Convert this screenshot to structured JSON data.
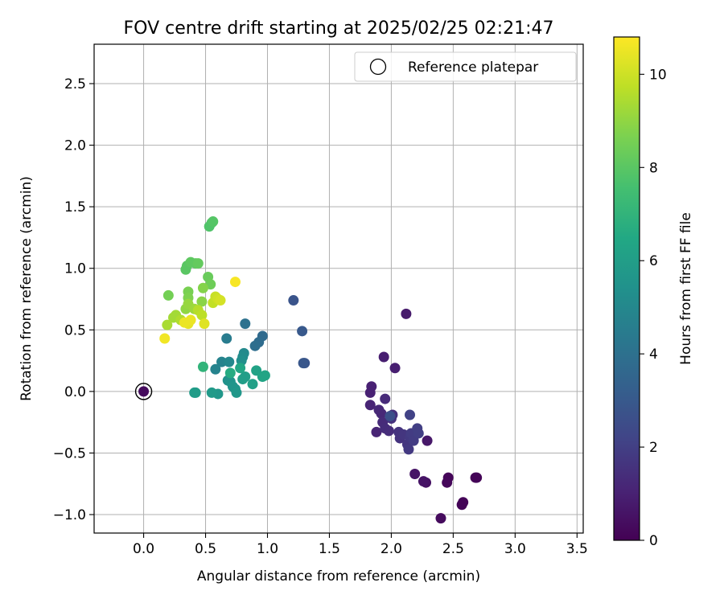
{
  "chart_data": {
    "type": "scatter",
    "title": "FOV centre drift starting at 2025/02/25 02:21:47",
    "xlabel": "Angular distance from reference (arcmin)",
    "ylabel": "Rotation from reference (arcmin)",
    "xlim": [
      -0.4,
      3.55
    ],
    "ylim": [
      -1.15,
      2.82
    ],
    "xticks": [
      0.0,
      0.5,
      1.0,
      1.5,
      2.0,
      2.5,
      3.0,
      3.5
    ],
    "yticks": [
      -1.0,
      -0.5,
      0.0,
      0.5,
      1.0,
      1.5,
      2.0,
      2.5
    ],
    "grid": true,
    "legend": {
      "position": "top-right",
      "label": "Reference platepar"
    },
    "reference_point": {
      "x": 0.0,
      "y": 0.0,
      "c": 0.3
    },
    "colorbar": {
      "label": "Hours from first FF file",
      "range": [
        0,
        10.8
      ],
      "ticks": [
        0,
        2,
        4,
        6,
        8,
        10
      ],
      "colormap": "viridis"
    },
    "points": [
      {
        "x": 2.58,
        "y": -0.9,
        "c": 0.1
      },
      {
        "x": 2.57,
        "y": -0.92,
        "c": 0.1
      },
      {
        "x": 2.68,
        "y": -0.7,
        "c": 0.1
      },
      {
        "x": 2.69,
        "y": -0.7,
        "c": 0.1
      },
      {
        "x": 2.46,
        "y": -0.7,
        "c": 0.15
      },
      {
        "x": 2.45,
        "y": -0.74,
        "c": 0.2
      },
      {
        "x": 2.4,
        "y": -1.03,
        "c": 0.3
      },
      {
        "x": 2.28,
        "y": -0.74,
        "c": 0.5
      },
      {
        "x": 2.26,
        "y": -0.73,
        "c": 0.55
      },
      {
        "x": 2.19,
        "y": -0.67,
        "c": 0.6
      },
      {
        "x": 2.29,
        "y": -0.4,
        "c": 0.7
      },
      {
        "x": 2.12,
        "y": 0.63,
        "c": 0.8
      },
      {
        "x": 2.03,
        "y": 0.19,
        "c": 0.9
      },
      {
        "x": 1.94,
        "y": 0.28,
        "c": 0.9
      },
      {
        "x": 1.84,
        "y": 0.04,
        "c": 1.0
      },
      {
        "x": 1.83,
        "y": -0.01,
        "c": 1.0
      },
      {
        "x": 1.83,
        "y": -0.11,
        "c": 1.1
      },
      {
        "x": 1.88,
        "y": -0.33,
        "c": 1.1
      },
      {
        "x": 1.9,
        "y": -0.15,
        "c": 1.2
      },
      {
        "x": 1.92,
        "y": -0.18,
        "c": 1.2
      },
      {
        "x": 1.95,
        "y": -0.06,
        "c": 1.3
      },
      {
        "x": 1.93,
        "y": -0.25,
        "c": 1.3
      },
      {
        "x": 1.95,
        "y": -0.3,
        "c": 1.4
      },
      {
        "x": 1.98,
        "y": -0.32,
        "c": 1.4
      },
      {
        "x": 2.0,
        "y": -0.22,
        "c": 1.5
      },
      {
        "x": 2.01,
        "y": -0.19,
        "c": 1.5
      },
      {
        "x": 2.06,
        "y": -0.33,
        "c": 1.6
      },
      {
        "x": 2.07,
        "y": -0.38,
        "c": 1.6
      },
      {
        "x": 2.1,
        "y": -0.35,
        "c": 1.7
      },
      {
        "x": 2.13,
        "y": -0.43,
        "c": 1.7
      },
      {
        "x": 2.14,
        "y": -0.47,
        "c": 1.8
      },
      {
        "x": 2.15,
        "y": -0.37,
        "c": 1.8
      },
      {
        "x": 2.16,
        "y": -0.34,
        "c": 1.9
      },
      {
        "x": 2.18,
        "y": -0.4,
        "c": 1.9
      },
      {
        "x": 2.21,
        "y": -0.3,
        "c": 2.0
      },
      {
        "x": 2.22,
        "y": -0.34,
        "c": 2.0
      },
      {
        "x": 2.15,
        "y": -0.19,
        "c": 2.1
      },
      {
        "x": 1.99,
        "y": -0.2,
        "c": 2.6
      },
      {
        "x": 1.3,
        "y": 0.23,
        "c": 2.8
      },
      {
        "x": 1.29,
        "y": 0.23,
        "c": 2.9
      },
      {
        "x": 1.28,
        "y": 0.49,
        "c": 3.0
      },
      {
        "x": 1.21,
        "y": 0.74,
        "c": 2.8
      },
      {
        "x": 0.96,
        "y": 0.45,
        "c": 3.7
      },
      {
        "x": 0.93,
        "y": 0.4,
        "c": 3.8
      },
      {
        "x": 0.9,
        "y": 0.37,
        "c": 3.9
      },
      {
        "x": 0.82,
        "y": 0.55,
        "c": 4.0
      },
      {
        "x": 0.67,
        "y": 0.43,
        "c": 4.5
      },
      {
        "x": 0.63,
        "y": 0.24,
        "c": 4.8
      },
      {
        "x": 0.58,
        "y": 0.18,
        "c": 4.8
      },
      {
        "x": 0.69,
        "y": 0.24,
        "c": 5.0
      },
      {
        "x": 0.81,
        "y": 0.31,
        "c": 5.1
      },
      {
        "x": 0.8,
        "y": 0.28,
        "c": 5.2
      },
      {
        "x": 0.79,
        "y": 0.25,
        "c": 5.3
      },
      {
        "x": 0.68,
        "y": 0.09,
        "c": 5.4
      },
      {
        "x": 0.7,
        "y": 0.08,
        "c": 5.5
      },
      {
        "x": 0.72,
        "y": 0.04,
        "c": 5.6
      },
      {
        "x": 0.74,
        "y": 0.02,
        "c": 5.6
      },
      {
        "x": 0.75,
        "y": -0.01,
        "c": 5.7
      },
      {
        "x": 0.6,
        "y": -0.02,
        "c": 5.7
      },
      {
        "x": 0.55,
        "y": -0.01,
        "c": 5.8
      },
      {
        "x": 0.41,
        "y": -0.01,
        "c": 5.9
      },
      {
        "x": 0.42,
        "y": -0.01,
        "c": 5.9
      },
      {
        "x": 0.8,
        "y": 0.1,
        "c": 6.0
      },
      {
        "x": 0.82,
        "y": 0.12,
        "c": 6.0
      },
      {
        "x": 0.88,
        "y": 0.06,
        "c": 6.1
      },
      {
        "x": 0.91,
        "y": 0.17,
        "c": 6.2
      },
      {
        "x": 0.96,
        "y": 0.12,
        "c": 6.3
      },
      {
        "x": 0.98,
        "y": 0.13,
        "c": 6.3
      },
      {
        "x": 0.78,
        "y": 0.19,
        "c": 6.4
      },
      {
        "x": 0.7,
        "y": 0.15,
        "c": 6.6
      },
      {
        "x": 0.48,
        "y": 0.2,
        "c": 7.0
      },
      {
        "x": 0.53,
        "y": 1.34,
        "c": 7.8
      },
      {
        "x": 0.55,
        "y": 1.37,
        "c": 7.8
      },
      {
        "x": 0.56,
        "y": 1.38,
        "c": 7.9
      },
      {
        "x": 0.35,
        "y": 1.02,
        "c": 8.0
      },
      {
        "x": 0.34,
        "y": 0.99,
        "c": 8.0
      },
      {
        "x": 0.38,
        "y": 1.05,
        "c": 8.1
      },
      {
        "x": 0.42,
        "y": 1.04,
        "c": 8.1
      },
      {
        "x": 0.44,
        "y": 1.04,
        "c": 8.2
      },
      {
        "x": 0.52,
        "y": 0.93,
        "c": 8.3
      },
      {
        "x": 0.54,
        "y": 0.87,
        "c": 8.4
      },
      {
        "x": 0.2,
        "y": 0.78,
        "c": 8.5
      },
      {
        "x": 0.36,
        "y": 0.81,
        "c": 8.6
      },
      {
        "x": 0.36,
        "y": 0.76,
        "c": 8.7
      },
      {
        "x": 0.48,
        "y": 0.84,
        "c": 8.8
      },
      {
        "x": 0.47,
        "y": 0.73,
        "c": 8.9
      },
      {
        "x": 0.34,
        "y": 0.67,
        "c": 9.0
      },
      {
        "x": 0.36,
        "y": 0.71,
        "c": 9.1
      },
      {
        "x": 0.41,
        "y": 0.67,
        "c": 9.2
      },
      {
        "x": 0.26,
        "y": 0.62,
        "c": 9.3
      },
      {
        "x": 0.24,
        "y": 0.6,
        "c": 9.3
      },
      {
        "x": 0.19,
        "y": 0.54,
        "c": 9.4
      },
      {
        "x": 0.3,
        "y": 0.58,
        "c": 9.5
      },
      {
        "x": 0.44,
        "y": 0.66,
        "c": 9.6
      },
      {
        "x": 0.47,
        "y": 0.62,
        "c": 9.7
      },
      {
        "x": 0.56,
        "y": 0.72,
        "c": 9.8
      },
      {
        "x": 0.58,
        "y": 0.77,
        "c": 9.9
      },
      {
        "x": 0.6,
        "y": 0.75,
        "c": 10.0
      },
      {
        "x": 0.62,
        "y": 0.74,
        "c": 10.1
      },
      {
        "x": 0.49,
        "y": 0.55,
        "c": 10.3
      },
      {
        "x": 0.36,
        "y": 0.55,
        "c": 10.4
      },
      {
        "x": 0.33,
        "y": 0.56,
        "c": 10.5
      },
      {
        "x": 0.38,
        "y": 0.58,
        "c": 10.5
      },
      {
        "x": 0.17,
        "y": 0.43,
        "c": 10.6
      },
      {
        "x": 0.74,
        "y": 0.89,
        "c": 10.7
      }
    ]
  }
}
